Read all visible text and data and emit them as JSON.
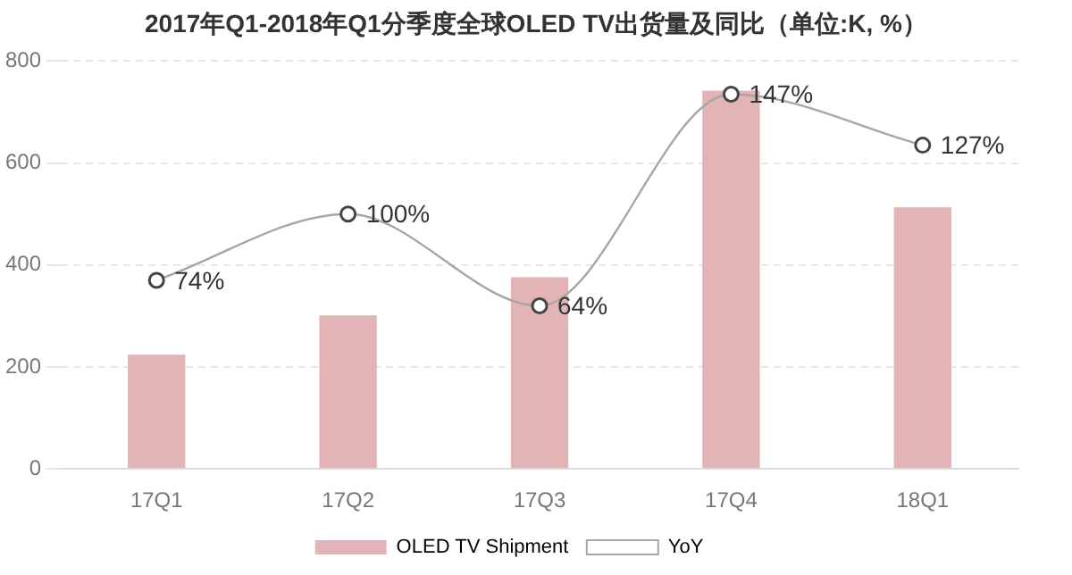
{
  "chart_data": {
    "type": "bar",
    "title": "2017年Q1-2018年Q1分季度全球OLED TV出货量及同比（单位:K, %）",
    "categories": [
      "17Q1",
      "17Q2",
      "17Q3",
      "17Q4",
      "18Q1"
    ],
    "series": [
      {
        "name": "OLED TV Shipment",
        "color": "#e3b4b5",
        "values": [
          224,
          301,
          376,
          742,
          513
        ]
      },
      {
        "name": "YoY",
        "type": "line",
        "axis": "y2",
        "color": "#a6a6a6",
        "marker": "circle",
        "values": [
          74,
          100,
          64,
          147,
          127
        ],
        "value_labels": [
          "74%",
          "100%",
          "64%",
          "147%",
          "127%"
        ]
      }
    ],
    "ylim": [
      0,
      800
    ],
    "yticks": [
      0,
      200,
      400,
      600,
      800
    ],
    "y2lim": [
      0,
      160
    ],
    "grid": "y",
    "legend": "bottom"
  }
}
